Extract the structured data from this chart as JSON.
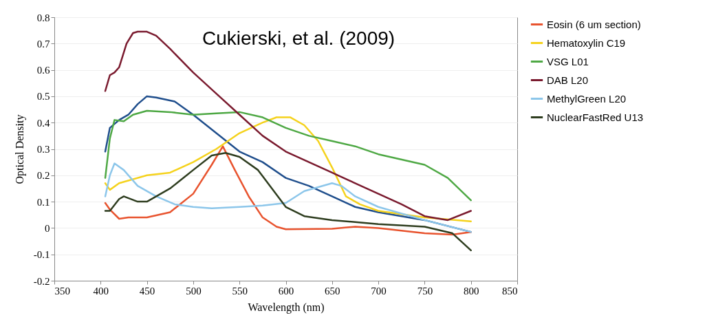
{
  "chart_data": {
    "type": "line",
    "xlabel": "Wavelength (nm)",
    "ylabel": "Optical Density",
    "annotations": [
      "Cukierski, et al. (2009)"
    ],
    "xlim": [
      350,
      850
    ],
    "xticks": [
      350,
      400,
      450,
      500,
      550,
      600,
      650,
      700,
      750,
      800,
      850
    ],
    "ylim": [
      -0.2,
      0.8
    ],
    "yticks": [
      -0.2,
      -0.1,
      0,
      0.1,
      0.2,
      0.3,
      0.4,
      0.5,
      0.6,
      0.7,
      0.8
    ],
    "grid": "y",
    "legend": "right",
    "series": [
      {
        "color": "#1f4e8c",
        "x": [
          405,
          410,
          420,
          430,
          440,
          450,
          460,
          480,
          500,
          525,
          550,
          575,
          600,
          625,
          650,
          675,
          700,
          750,
          800
        ],
        "values": [
          0.29,
          0.38,
          0.41,
          0.43,
          0.47,
          0.5,
          0.495,
          0.48,
          0.43,
          0.36,
          0.29,
          0.25,
          0.19,
          0.16,
          0.12,
          0.08,
          0.06,
          0.03,
          -0.015
        ]
      },
      {
        "name": "Eosin  (6 um section)",
        "color": "#e8532e",
        "x": [
          405,
          410,
          420,
          430,
          450,
          475,
          500,
          520,
          532,
          545,
          560,
          575,
          590,
          600,
          650,
          675,
          700,
          750,
          780,
          800
        ],
        "values": [
          0.095,
          0.07,
          0.035,
          0.04,
          0.04,
          0.06,
          0.13,
          0.24,
          0.31,
          0.22,
          0.12,
          0.04,
          0.005,
          -0.005,
          -0.003,
          0.005,
          0,
          -0.02,
          -0.025,
          -0.015
        ]
      },
      {
        "name": "Hematoxylin C19",
        "color": "#f5d21c",
        "x": [
          405,
          410,
          420,
          450,
          475,
          500,
          525,
          550,
          575,
          590,
          605,
          620,
          635,
          650,
          665,
          680,
          700,
          750,
          800
        ],
        "values": [
          0.17,
          0.145,
          0.17,
          0.2,
          0.21,
          0.25,
          0.3,
          0.36,
          0.4,
          0.42,
          0.42,
          0.39,
          0.33,
          0.23,
          0.12,
          0.09,
          0.065,
          0.04,
          0.025
        ]
      },
      {
        "name": "VSG L01",
        "color": "#4ea844",
        "x": [
          405,
          410,
          415,
          425,
          435,
          450,
          475,
          500,
          525,
          550,
          575,
          600,
          625,
          650,
          675,
          700,
          750,
          775,
          800
        ],
        "values": [
          0.19,
          0.34,
          0.41,
          0.405,
          0.43,
          0.445,
          0.44,
          0.43,
          0.435,
          0.44,
          0.42,
          0.38,
          0.35,
          0.33,
          0.31,
          0.28,
          0.24,
          0.19,
          0.105
        ]
      },
      {
        "name": "DAB L20",
        "color": "#7a1a2e",
        "x": [
          405,
          410,
          415,
          420,
          428,
          435,
          440,
          450,
          460,
          475,
          500,
          525,
          550,
          575,
          600,
          625,
          650,
          675,
          700,
          725,
          750,
          775,
          800
        ],
        "values": [
          0.52,
          0.58,
          0.59,
          0.61,
          0.7,
          0.74,
          0.745,
          0.745,
          0.73,
          0.68,
          0.59,
          0.51,
          0.43,
          0.35,
          0.29,
          0.25,
          0.21,
          0.17,
          0.13,
          0.09,
          0.045,
          0.03,
          0.065
        ]
      },
      {
        "name": "MethylGreen L20",
        "color": "#8cc6ea",
        "x": [
          405,
          410,
          415,
          425,
          440,
          460,
          480,
          500,
          520,
          550,
          575,
          600,
          620,
          650,
          660,
          675,
          700,
          750,
          800
        ],
        "values": [
          0.12,
          0.2,
          0.245,
          0.22,
          0.16,
          0.12,
          0.09,
          0.08,
          0.075,
          0.08,
          0.085,
          0.095,
          0.14,
          0.17,
          0.16,
          0.12,
          0.08,
          0.03,
          -0.015
        ]
      },
      {
        "name": "NuclearFastRed U13",
        "color": "#2e3d1f",
        "x": [
          405,
          410,
          420,
          425,
          440,
          450,
          475,
          500,
          520,
          535,
          550,
          570,
          600,
          620,
          650,
          700,
          750,
          780,
          800
        ],
        "values": [
          0.065,
          0.065,
          0.11,
          0.12,
          0.1,
          0.1,
          0.15,
          0.22,
          0.275,
          0.285,
          0.27,
          0.22,
          0.08,
          0.045,
          0.03,
          0.015,
          0.005,
          -0.02,
          -0.085
        ]
      }
    ]
  }
}
